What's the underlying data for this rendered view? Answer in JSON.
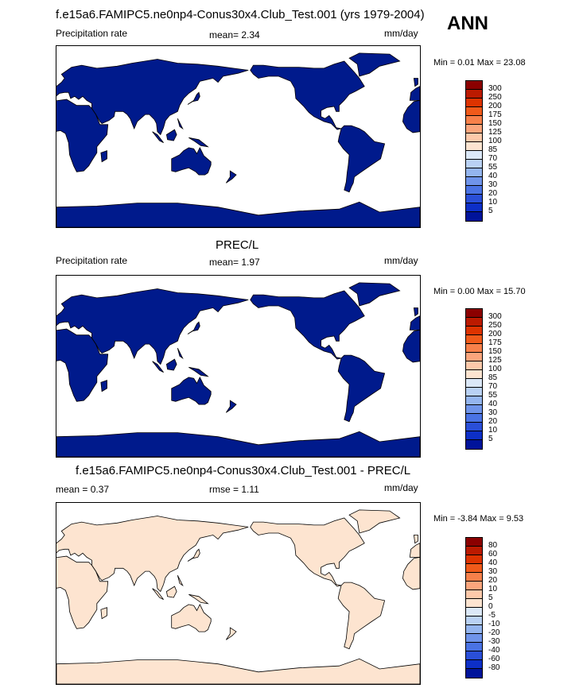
{
  "header": {
    "annual_label": "ANN"
  },
  "panels": [
    {
      "id": "model",
      "title": "f.e15a6.FAMIPC5.ne0np4-Conus30x4.Club_Test.001 (yrs 1979-2004)",
      "left_text": "Precipitation rate",
      "mid_text": "mean=  2.34",
      "right_text": "mm/day",
      "minmax": "Min =   0.01 Max =  23.08",
      "colorbar_labels": [
        "300",
        "250",
        "200",
        "175",
        "150",
        "125",
        "100",
        "85",
        "70",
        "55",
        "40",
        "30",
        "20",
        "10",
        "5"
      ],
      "colorbar_colors": [
        "#8b0000",
        "#bb1a00",
        "#dd3300",
        "#f05a1a",
        "#f7804a",
        "#fba57c",
        "#fdc9aa",
        "#fde4d0",
        "#dbe8f8",
        "#b9d1f4",
        "#94b5ef",
        "#6f94ea",
        "#4a73e4",
        "#2a4fd8",
        "#0d2fc7",
        "#00139a"
      ],
      "land_color": "#001a8c",
      "ocean_color": "#ffffff"
    },
    {
      "id": "obs",
      "title": "PREC/L",
      "left_text": "Precipitation rate",
      "mid_text": "mean=  1.97",
      "right_text": "mm/day",
      "minmax": "Min =   0.00 Max =  15.70",
      "colorbar_labels": [
        "300",
        "250",
        "200",
        "175",
        "150",
        "125",
        "100",
        "85",
        "70",
        "55",
        "40",
        "30",
        "20",
        "10",
        "5"
      ],
      "colorbar_colors": [
        "#8b0000",
        "#bb1a00",
        "#dd3300",
        "#f05a1a",
        "#f7804a",
        "#fba57c",
        "#fdc9aa",
        "#fde4d0",
        "#dbe8f8",
        "#b9d1f4",
        "#94b5ef",
        "#6f94ea",
        "#4a73e4",
        "#2a4fd8",
        "#0d2fc7",
        "#00139a"
      ],
      "land_color": "#001a8c",
      "ocean_color": "#ffffff"
    },
    {
      "id": "diff",
      "title": "f.e15a6.FAMIPC5.ne0np4-Conus30x4.Club_Test.001 - PREC/L",
      "left_text": "mean =   0.37",
      "mid_text": "rmse =   1.11",
      "right_text": "mm/day",
      "minmax": "Min =  -3.84 Max =   9.53",
      "colorbar_labels": [
        "80",
        "60",
        "40",
        "30",
        "20",
        "10",
        "5",
        "0",
        "-5",
        "-10",
        "-20",
        "-30",
        "-40",
        "-60",
        "-80"
      ],
      "colorbar_colors": [
        "#8b0000",
        "#bb1a00",
        "#dd3300",
        "#f05a1a",
        "#f7804a",
        "#fba57c",
        "#fdc9aa",
        "#fde4d0",
        "#dbe8f8",
        "#b9d1f4",
        "#94b5ef",
        "#6f94ea",
        "#4a73e4",
        "#2a4fd8",
        "#0d2fc7",
        "#00139a"
      ],
      "land_color": "#fde4d0",
      "ocean_color": "#ffffff"
    }
  ],
  "chart_data": [
    {
      "type": "heatmap",
      "title": "f.e15a6.FAMIPC5.ne0np4-Conus30x4.Club_Test.001 (yrs 1979-2004)",
      "variable": "Precipitation rate",
      "units": "mm/day",
      "mean": 2.34,
      "min": 0.01,
      "max": 23.08,
      "season": "ANN",
      "levels": [
        5,
        10,
        20,
        30,
        40,
        55,
        70,
        85,
        100,
        125,
        150,
        175,
        200,
        250,
        300
      ]
    },
    {
      "type": "heatmap",
      "title": "PREC/L",
      "variable": "Precipitation rate",
      "units": "mm/day",
      "mean": 1.97,
      "min": 0.0,
      "max": 15.7,
      "levels": [
        5,
        10,
        20,
        30,
        40,
        55,
        70,
        85,
        100,
        125,
        150,
        175,
        200,
        250,
        300
      ]
    },
    {
      "type": "heatmap",
      "title": "f.e15a6.FAMIPC5.ne0np4-Conus30x4.Club_Test.001 - PREC/L",
      "units": "mm/day",
      "mean": 0.37,
      "rmse": 1.11,
      "min": -3.84,
      "max": 9.53,
      "levels": [
        -80,
        -60,
        -40,
        -30,
        -20,
        -10,
        -5,
        0,
        5,
        10,
        20,
        30,
        40,
        60,
        80
      ]
    }
  ]
}
